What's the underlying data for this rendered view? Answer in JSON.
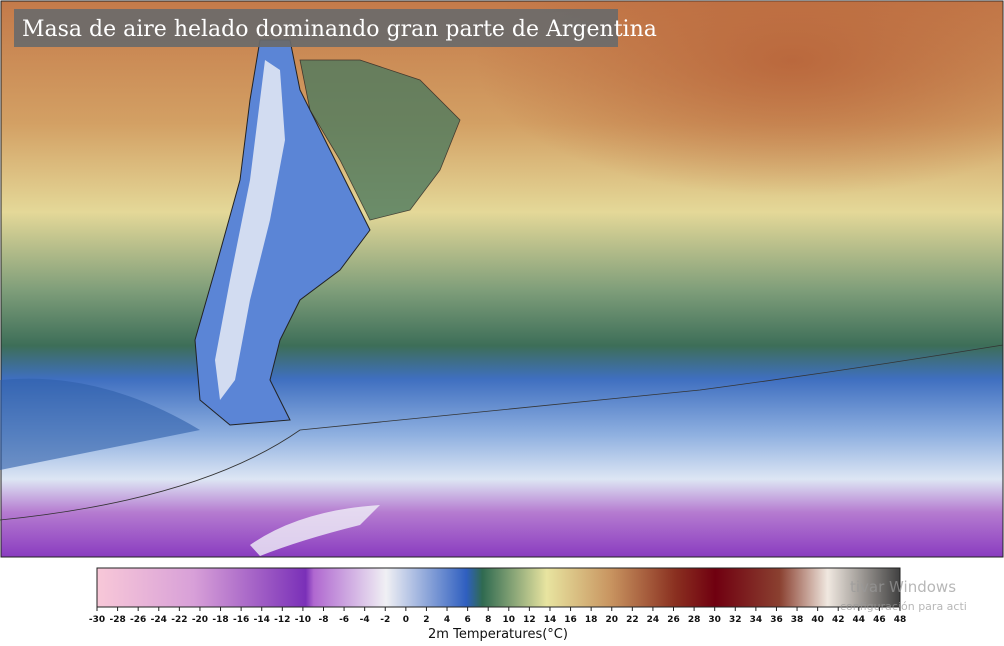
{
  "title": "Masa de aire helado dominando gran parte de Argentina",
  "colorbar": {
    "label": "2m Temperatures(°C)",
    "range": [
      -30,
      48
    ],
    "ticks": [
      -30,
      -28,
      -26,
      -24,
      -22,
      -20,
      -18,
      -16,
      -14,
      -12,
      -10,
      -8,
      -6,
      -4,
      -2,
      0,
      2,
      4,
      6,
      8,
      10,
      12,
      14,
      16,
      18,
      20,
      22,
      24,
      26,
      28,
      30,
      32,
      34,
      36,
      38,
      40,
      42,
      44,
      46,
      48
    ]
  },
  "watermark": {
    "line1": "tivar Windows",
    "line2": "configuración para acti"
  }
}
